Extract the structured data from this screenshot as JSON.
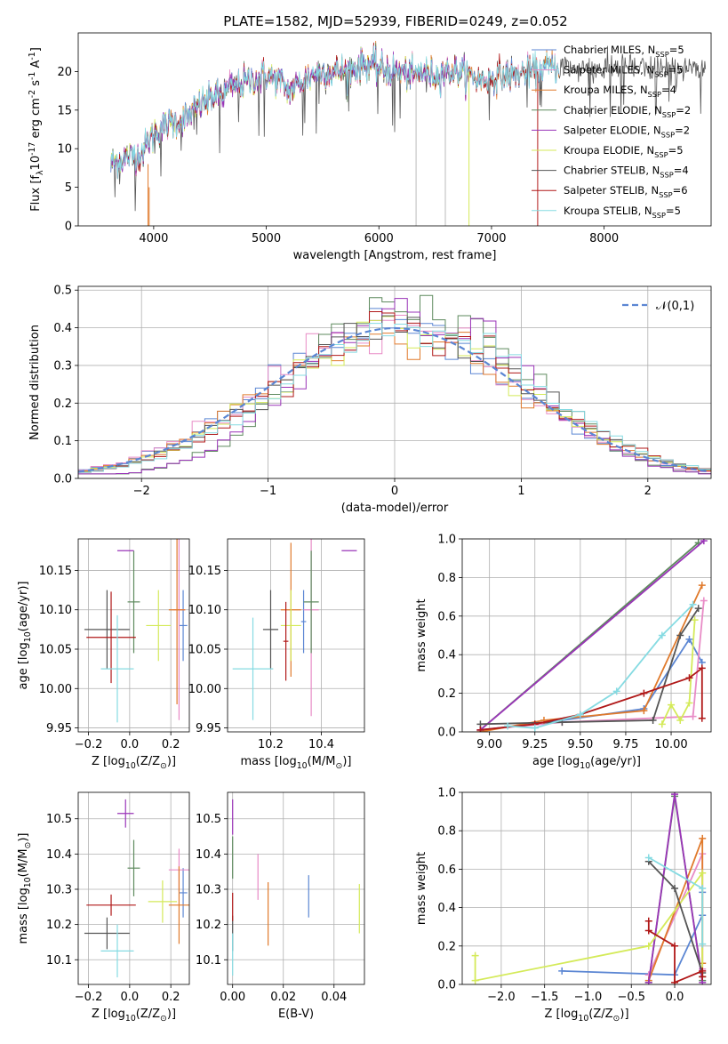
{
  "figure_title": "PLATE=1582, MJD=52939, FIBERID=0249, z=0.052",
  "colors": [
    "#5b86d3",
    "#e88bc6",
    "#e07a2c",
    "#5e8a5e",
    "#9a34b8",
    "#d4ea59",
    "#555555",
    "#b01818",
    "#86dbe2"
  ],
  "chart_data": [
    {
      "id": "spectrum",
      "type": "line",
      "xlabel": "wavelength [Angstrom, rest frame]",
      "ylabel": "Flux [f$_\\lambda$10$^{-17}$ erg cm$^{-2}$ s$^{-1}$ A$^{-1}$]",
      "xlim": [
        3330,
        8950
      ],
      "ylim": [
        0,
        25
      ],
      "xticks": [
        4000,
        5000,
        6000,
        7000,
        8000
      ],
      "yticks": [
        0,
        5,
        10,
        15,
        20
      ],
      "grid": false,
      "legend_position": "top-right",
      "series": [
        {
          "name": "Chabrier MILES, N$_{SSP}$=5",
          "color_index": 0,
          "xmax": 7600
        },
        {
          "name": "Salpeter MILES, N$_{SSP}$=5",
          "color_index": 1,
          "xmax": 7600
        },
        {
          "name": "Kroupa MILES, N$_{SSP}$=4",
          "color_index": 2,
          "xmax": 7600
        },
        {
          "name": "Chabrier ELODIE, N$_{SSP}$=2",
          "color_index": 3,
          "xmax": 6800
        },
        {
          "name": "Salpeter ELODIE, N$_{SSP}$=2",
          "color_index": 4,
          "xmax": 6800
        },
        {
          "name": "Kroupa ELODIE, N$_{SSP}$=5",
          "color_index": 5,
          "xmax": 6800
        },
        {
          "name": "Chabrier STELIB, N$_{SSP}$=4",
          "color_index": 6,
          "xmax": 9000
        },
        {
          "name": "Salpeter STELIB, N$_{SSP}$=6",
          "color_index": 7,
          "xmax": 7400
        },
        {
          "name": "Kroupa STELIB, N$_{SSP}$=5",
          "color_index": 8,
          "xmax": 7600
        }
      ],
      "continuum": {
        "x": [
          3600,
          3700,
          3800,
          3900,
          4000,
          4100,
          4200,
          4300,
          4400,
          4500,
          4600,
          4700,
          4800,
          4900,
          5000,
          5100,
          5200,
          5300,
          5400,
          5500,
          5600,
          5700,
          5800,
          5900,
          6000,
          6100,
          6200,
          6300,
          6400,
          6500,
          6600,
          6700,
          6800,
          6900,
          7000,
          7100,
          7200,
          7300,
          7400,
          7500,
          7600,
          7700,
          7800,
          7900,
          8000,
          8100,
          8200,
          8300,
          8400,
          8500,
          8600,
          8700,
          8800,
          8900
        ],
        "y": [
          8,
          8.5,
          9,
          9.5,
          12,
          13,
          13.5,
          14,
          15.5,
          16.5,
          17,
          18,
          18.5,
          19,
          19.5,
          19,
          17.5,
          18.5,
          19.5,
          20,
          20,
          20,
          20.5,
          21,
          20.5,
          20,
          20,
          19.5,
          20,
          19.5,
          20,
          20,
          19.5,
          19,
          19,
          19.5,
          19.5,
          20,
          20,
          20.5,
          20.5,
          20.5,
          20.5,
          20.5,
          20.5,
          20.5,
          20.5,
          20.5,
          20,
          20.5,
          20,
          20.5,
          20,
          20
        ]
      }
    },
    {
      "id": "residuals",
      "type": "histogram",
      "xlabel": "(data-model)/error",
      "ylabel": "Normed distribution",
      "xlim": [
        -2.5,
        2.5
      ],
      "ylim": [
        0,
        0.51
      ],
      "xticks": [
        -2,
        -1,
        0,
        1,
        2
      ],
      "yticks": [
        0.0,
        0.1,
        0.2,
        0.3,
        0.4,
        0.5
      ],
      "grid": true,
      "legend_position": "top-right",
      "legend": [
        {
          "name": "$\\mathcal{N}(0,1)$",
          "color": "#5b86d3",
          "style": "dashed"
        }
      ]
    },
    {
      "id": "age-vs-Z",
      "type": "errorbar",
      "xlabel": "Z [log$_{10}$(Z/Z$_\\odot$)]",
      "ylabel": "age  [log$_{10}$(age/yr)]",
      "xlim": [
        -0.25,
        0.29
      ],
      "ylim": [
        9.945,
        10.19
      ],
      "xticks": [
        -0.2,
        0.0,
        0.2
      ],
      "yticks": [
        9.95,
        10.0,
        10.05,
        10.1,
        10.15
      ],
      "grid": true,
      "points": [
        {
          "c": 0,
          "x": 0.26,
          "y": 10.08,
          "xe": 0.02,
          "ye": 0.045
        },
        {
          "c": 1,
          "x": 0.24,
          "y": 10.1,
          "xe": 0.03,
          "ye": 0.14
        },
        {
          "c": 2,
          "x": 0.23,
          "y": 10.1,
          "xe": 0.04,
          "ye": 0.12
        },
        {
          "c": 3,
          "x": 0.02,
          "y": 10.11,
          "xe": 0.03,
          "ye": 0.065
        },
        {
          "c": 4,
          "x": -0.02,
          "y": 10.175,
          "xe": 0.04,
          "ye": 0.0
        },
        {
          "c": 5,
          "x": 0.14,
          "y": 10.08,
          "xe": 0.06,
          "ye": 0.045
        },
        {
          "c": 6,
          "x": -0.11,
          "y": 10.075,
          "xe": 0.11,
          "ye": 0.05
        },
        {
          "c": 7,
          "x": -0.09,
          "y": 10.065,
          "xe": 0.12,
          "ye": 0.058
        },
        {
          "c": 8,
          "x": -0.06,
          "y": 10.025,
          "xe": 0.08,
          "ye": 0.068
        }
      ]
    },
    {
      "id": "age-vs-mass",
      "type": "errorbar",
      "xlabel": "mass [log$_{10}$(M/M$_\\odot$)]",
      "ylabel": "",
      "xlim": [
        10.03,
        10.57
      ],
      "ylim": [
        9.945,
        10.19
      ],
      "xticks": [
        10.2,
        10.4
      ],
      "yticks": [
        9.95,
        10.0,
        10.05,
        10.1,
        10.15
      ],
      "grid": true,
      "points": [
        {
          "c": 0,
          "x": 10.33,
          "y": 10.085,
          "xe": 0.01,
          "ye": 0.04
        },
        {
          "c": 1,
          "x": 10.36,
          "y": 10.1,
          "xe": 0.03,
          "ye": 0.135
        },
        {
          "c": 2,
          "x": 10.28,
          "y": 10.1,
          "xe": 0.04,
          "ye": 0.085
        },
        {
          "c": 3,
          "x": 10.36,
          "y": 10.11,
          "xe": 0.03,
          "ye": 0.065
        },
        {
          "c": 4,
          "x": 10.51,
          "y": 10.175,
          "xe": 0.03,
          "ye": 0.0
        },
        {
          "c": 5,
          "x": 10.28,
          "y": 10.08,
          "xe": 0.04,
          "ye": 0.045
        },
        {
          "c": 6,
          "x": 10.2,
          "y": 10.075,
          "xe": 0.03,
          "ye": 0.05
        },
        {
          "c": 7,
          "x": 10.26,
          "y": 10.06,
          "xe": 0.01,
          "ye": 0.05
        },
        {
          "c": 8,
          "x": 10.13,
          "y": 10.025,
          "xe": 0.08,
          "ye": 0.065
        }
      ]
    },
    {
      "id": "weight-vs-age",
      "type": "line",
      "xlabel": "age  [log$_{10}$(age/yr)]",
      "ylabel": "mass weight",
      "xlim": [
        8.85,
        10.22
      ],
      "ylim": [
        0,
        1
      ],
      "xticks": [
        9.0,
        9.25,
        9.5,
        9.75,
        10.0
      ],
      "yticks": [
        0.0,
        0.2,
        0.4,
        0.6,
        0.8,
        1.0
      ],
      "grid": true,
      "series": [
        {
          "c": 0,
          "x": [
            8.95,
            9.25,
            9.85,
            10.1,
            10.17
          ],
          "y": [
            0.01,
            0.04,
            0.12,
            0.48,
            0.36
          ]
        },
        {
          "c": 1,
          "x": [
            8.95,
            9.4,
            10.12,
            10.18
          ],
          "y": [
            0.01,
            0.05,
            0.08,
            0.68
          ]
        },
        {
          "c": 2,
          "x": [
            8.95,
            9.3,
            9.85,
            10.17
          ],
          "y": [
            0.0,
            0.06,
            0.11,
            0.76
          ]
        },
        {
          "c": 3,
          "x": [
            8.95,
            10.15
          ],
          "y": [
            0.01,
            0.98
          ]
        },
        {
          "c": 4,
          "x": [
            8.95,
            10.18
          ],
          "y": [
            0.01,
            0.99
          ]
        },
        {
          "c": 5,
          "x": [
            9.95,
            10.0,
            10.05,
            10.1,
            10.13
          ],
          "y": [
            0.04,
            0.14,
            0.06,
            0.15,
            0.58
          ]
        },
        {
          "c": 6,
          "x": [
            8.95,
            9.4,
            9.9,
            10.05,
            10.15
          ],
          "y": [
            0.04,
            0.05,
            0.06,
            0.5,
            0.64
          ]
        },
        {
          "c": 7,
          "x": [
            8.95,
            9.25,
            9.5,
            9.85,
            10.1,
            10.17,
            10.17
          ],
          "y": [
            0.01,
            0.04,
            0.09,
            0.2,
            0.28,
            0.33,
            0.07
          ]
        },
        {
          "c": 8,
          "x": [
            9.1,
            9.25,
            9.5,
            9.7,
            9.95,
            10.12
          ],
          "y": [
            0.03,
            0.02,
            0.09,
            0.21,
            0.5,
            0.66
          ]
        }
      ]
    },
    {
      "id": "mass-vs-Z",
      "type": "errorbar",
      "xlabel": "Z [log$_{10}$(Z/Z$_\\odot$)]",
      "ylabel": "mass [log$_{10}$(M/M$_\\odot$)]",
      "xlim": [
        -0.25,
        0.29
      ],
      "ylim": [
        10.03,
        10.575
      ],
      "xticks": [
        -0.2,
        0.0,
        0.2
      ],
      "yticks": [
        10.1,
        10.2,
        10.3,
        10.4,
        10.5
      ],
      "grid": true,
      "points": [
        {
          "c": 0,
          "x": 0.26,
          "y": 10.29,
          "xe": 0.02,
          "ye": 0.07
        },
        {
          "c": 1,
          "x": 0.24,
          "y": 10.355,
          "xe": 0.05,
          "ye": 0.06
        },
        {
          "c": 2,
          "x": 0.24,
          "y": 10.255,
          "xe": 0.05,
          "ye": 0.11
        },
        {
          "c": 3,
          "x": 0.02,
          "y": 10.36,
          "xe": 0.03,
          "ye": 0.08
        },
        {
          "c": 4,
          "x": -0.02,
          "y": 10.515,
          "xe": 0.04,
          "ye": 0.04
        },
        {
          "c": 5,
          "x": 0.16,
          "y": 10.265,
          "xe": 0.07,
          "ye": 0.06
        },
        {
          "c": 6,
          "x": -0.11,
          "y": 10.175,
          "xe": 0.11,
          "ye": 0.045
        },
        {
          "c": 7,
          "x": -0.09,
          "y": 10.255,
          "xe": 0.12,
          "ye": 0.03
        },
        {
          "c": 8,
          "x": -0.06,
          "y": 10.125,
          "xe": 0.08,
          "ye": 0.075
        }
      ]
    },
    {
      "id": "mass-vs-ebv",
      "type": "errorbar",
      "xlabel": "E(B-V)",
      "ylabel": "",
      "xlim": [
        -0.002,
        0.052
      ],
      "ylim": [
        10.03,
        10.575
      ],
      "xticks": [
        0.0,
        0.02,
        0.04
      ],
      "yticks": [
        10.1,
        10.2,
        10.3,
        10.4,
        10.5
      ],
      "grid": true,
      "points": [
        {
          "c": 0,
          "x": 0.03,
          "y": 10.28,
          "xe": 0.0,
          "ye": 0.06
        },
        {
          "c": 1,
          "x": 0.01,
          "y": 10.335,
          "xe": 0.0,
          "ye": 0.065
        },
        {
          "c": 2,
          "x": 0.014,
          "y": 10.23,
          "xe": 0.0,
          "ye": 0.09
        },
        {
          "c": 3,
          "x": 0.0,
          "y": 10.39,
          "xe": 0.0,
          "ye": 0.06
        },
        {
          "c": 4,
          "x": 0.0,
          "y": 10.505,
          "xe": 0.0,
          "ye": 0.05
        },
        {
          "c": 5,
          "x": 0.05,
          "y": 10.245,
          "xe": 0.0,
          "ye": 0.07
        },
        {
          "c": 6,
          "x": 0.0,
          "y": 10.175,
          "xe": 0.0,
          "ye": 0.05
        },
        {
          "c": 7,
          "x": 0.0,
          "y": 10.25,
          "xe": 0.0,
          "ye": 0.04
        },
        {
          "c": 8,
          "x": 0.0,
          "y": 10.115,
          "xe": 0.0,
          "ye": 0.06
        }
      ]
    },
    {
      "id": "weight-vs-Z",
      "type": "line",
      "xlabel": "Z [log$_{10}$(Z/Z$_\\odot$)]",
      "ylabel": "mass weight",
      "xlim": [
        -2.45,
        0.42
      ],
      "ylim": [
        0,
        1
      ],
      "xticks": [
        -2.0,
        -1.5,
        -1.0,
        -0.5,
        0.0
      ],
      "yticks": [
        0.0,
        0.2,
        0.4,
        0.6,
        0.8,
        1.0
      ],
      "grid": true,
      "series": [
        {
          "c": 0,
          "x": [
            -1.3,
            0.0,
            0.32,
            0.32
          ],
          "y": [
            0.07,
            0.05,
            0.36,
            0.48
          ]
        },
        {
          "c": 1,
          "x": [
            -0.3,
            0.32,
            0.32
          ],
          "y": [
            0.05,
            0.68,
            0.08
          ]
        },
        {
          "c": 2,
          "x": [
            -0.3,
            0.32,
            0.32
          ],
          "y": [
            0.02,
            0.76,
            0.11
          ]
        },
        {
          "c": 3,
          "x": [
            -0.3,
            0.0,
            0.32
          ],
          "y": [
            0.01,
            0.98,
            0.02
          ]
        },
        {
          "c": 4,
          "x": [
            -0.3,
            0.0,
            0.32
          ],
          "y": [
            0.01,
            0.99,
            0.01
          ]
        },
        {
          "c": 5,
          "x": [
            -2.3,
            -2.3,
            -0.3,
            0.32,
            0.32
          ],
          "y": [
            0.15,
            0.02,
            0.2,
            0.58,
            0.04
          ]
        },
        {
          "c": 6,
          "x": [
            -0.3,
            0.0,
            0.32,
            0.32
          ],
          "y": [
            0.64,
            0.5,
            0.06,
            0.04
          ]
        },
        {
          "c": 7,
          "x": [
            -0.3,
            -0.3,
            0.0,
            0.0,
            0.32,
            0.32
          ],
          "y": [
            0.33,
            0.28,
            0.2,
            0.01,
            0.07,
            0.04
          ]
        },
        {
          "c": 8,
          "x": [
            -0.3,
            0.32,
            0.32
          ],
          "y": [
            0.66,
            0.5,
            0.21
          ]
        }
      ]
    }
  ]
}
